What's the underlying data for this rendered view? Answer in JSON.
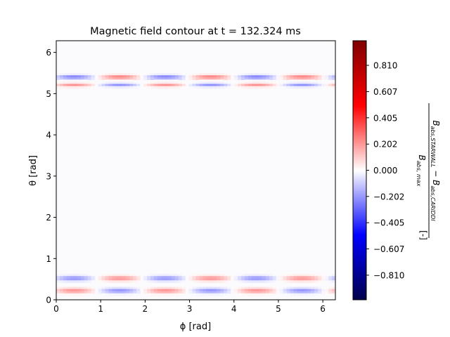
{
  "chart_data": {
    "type": "heatmap",
    "title": "Magnetic field contour at t = 132.324 ms",
    "xlabel": "ϕ [rad]",
    "ylabel": "θ [rad]",
    "xlim": [
      0,
      6.283
    ],
    "ylim": [
      0,
      6.283
    ],
    "xticks": [
      0,
      1,
      2,
      3,
      4,
      5,
      6
    ],
    "yticks": [
      0,
      1,
      2,
      3,
      4,
      5,
      6
    ],
    "colorbar": {
      "label": "B_abs,STARWALL − B_abs,CARIDDI / B_abs,max [-]",
      "colormap": "seismic",
      "range": [
        -1.0,
        1.0
      ],
      "ticks": [
        "0.810",
        "0.607",
        "0.405",
        "0.202",
        "0.000",
        "-0.202",
        "-0.405",
        "-0.607",
        "-0.810"
      ],
      "tick_values": [
        0.81,
        0.607,
        0.405,
        0.202,
        0.0,
        -0.202,
        -0.405,
        -0.607,
        -0.81
      ]
    },
    "bands": [
      {
        "theta": 5.4,
        "width": 0.05,
        "amplitude": 0.12,
        "pattern": "negative-positive alternating"
      },
      {
        "theta": 5.21,
        "width": 0.04,
        "amplitude": 0.1,
        "pattern": "positive-negative alternating"
      },
      {
        "theta": 0.52,
        "width": 0.06,
        "amplitude": 0.1,
        "pattern": "negative-positive alternating"
      },
      {
        "theta": 0.22,
        "width": 0.06,
        "amplitude": 0.1,
        "pattern": "positive-negative alternating"
      }
    ],
    "grid": false
  }
}
